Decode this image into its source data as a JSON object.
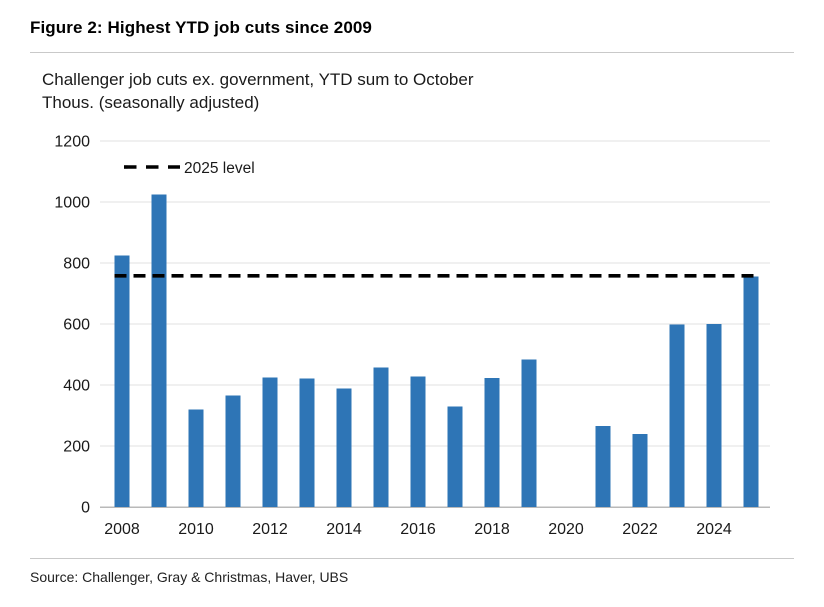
{
  "page": {
    "title": "Figure 2: Highest YTD job cuts since 2009",
    "subtitle_line1": "Challenger job cuts ex. government, YTD sum to October",
    "subtitle_line2": "Thous. (seasonally adjusted)",
    "source": "Source: Challenger, Gray & Christmas, Haver, UBS"
  },
  "chart_data": {
    "type": "bar",
    "title": "Challenger job cuts ex. government, YTD sum to October",
    "units_label": "Thous. (seasonally adjusted)",
    "categories": [
      "2008",
      "2009",
      "2010",
      "2011",
      "2012",
      "2013",
      "2014",
      "2015",
      "2016",
      "2017",
      "2018",
      "2019",
      "2020",
      "2021",
      "2022",
      "2023",
      "2024",
      "2025"
    ],
    "values": [
      825,
      1025,
      320,
      365,
      425,
      422,
      388,
      458,
      428,
      330,
      423,
      483,
      null,
      265,
      240,
      598,
      600,
      756
    ],
    "reference_line": {
      "label": "2025 level",
      "value": 758,
      "style": "dashed",
      "color": "#000000"
    },
    "ylim": [
      0,
      1200
    ],
    "yticks": [
      0,
      200,
      400,
      600,
      800,
      1000,
      1200
    ],
    "xtick_labels": [
      "2008",
      "2010",
      "2012",
      "2014",
      "2016",
      "2018",
      "2020",
      "2022",
      "2024"
    ],
    "bar_color": "#2e75b6",
    "gridline_color": "#e0e0e0",
    "axis_line_color": "#b9b9b9",
    "grid": true,
    "legend_position": "top-left-inside"
  }
}
